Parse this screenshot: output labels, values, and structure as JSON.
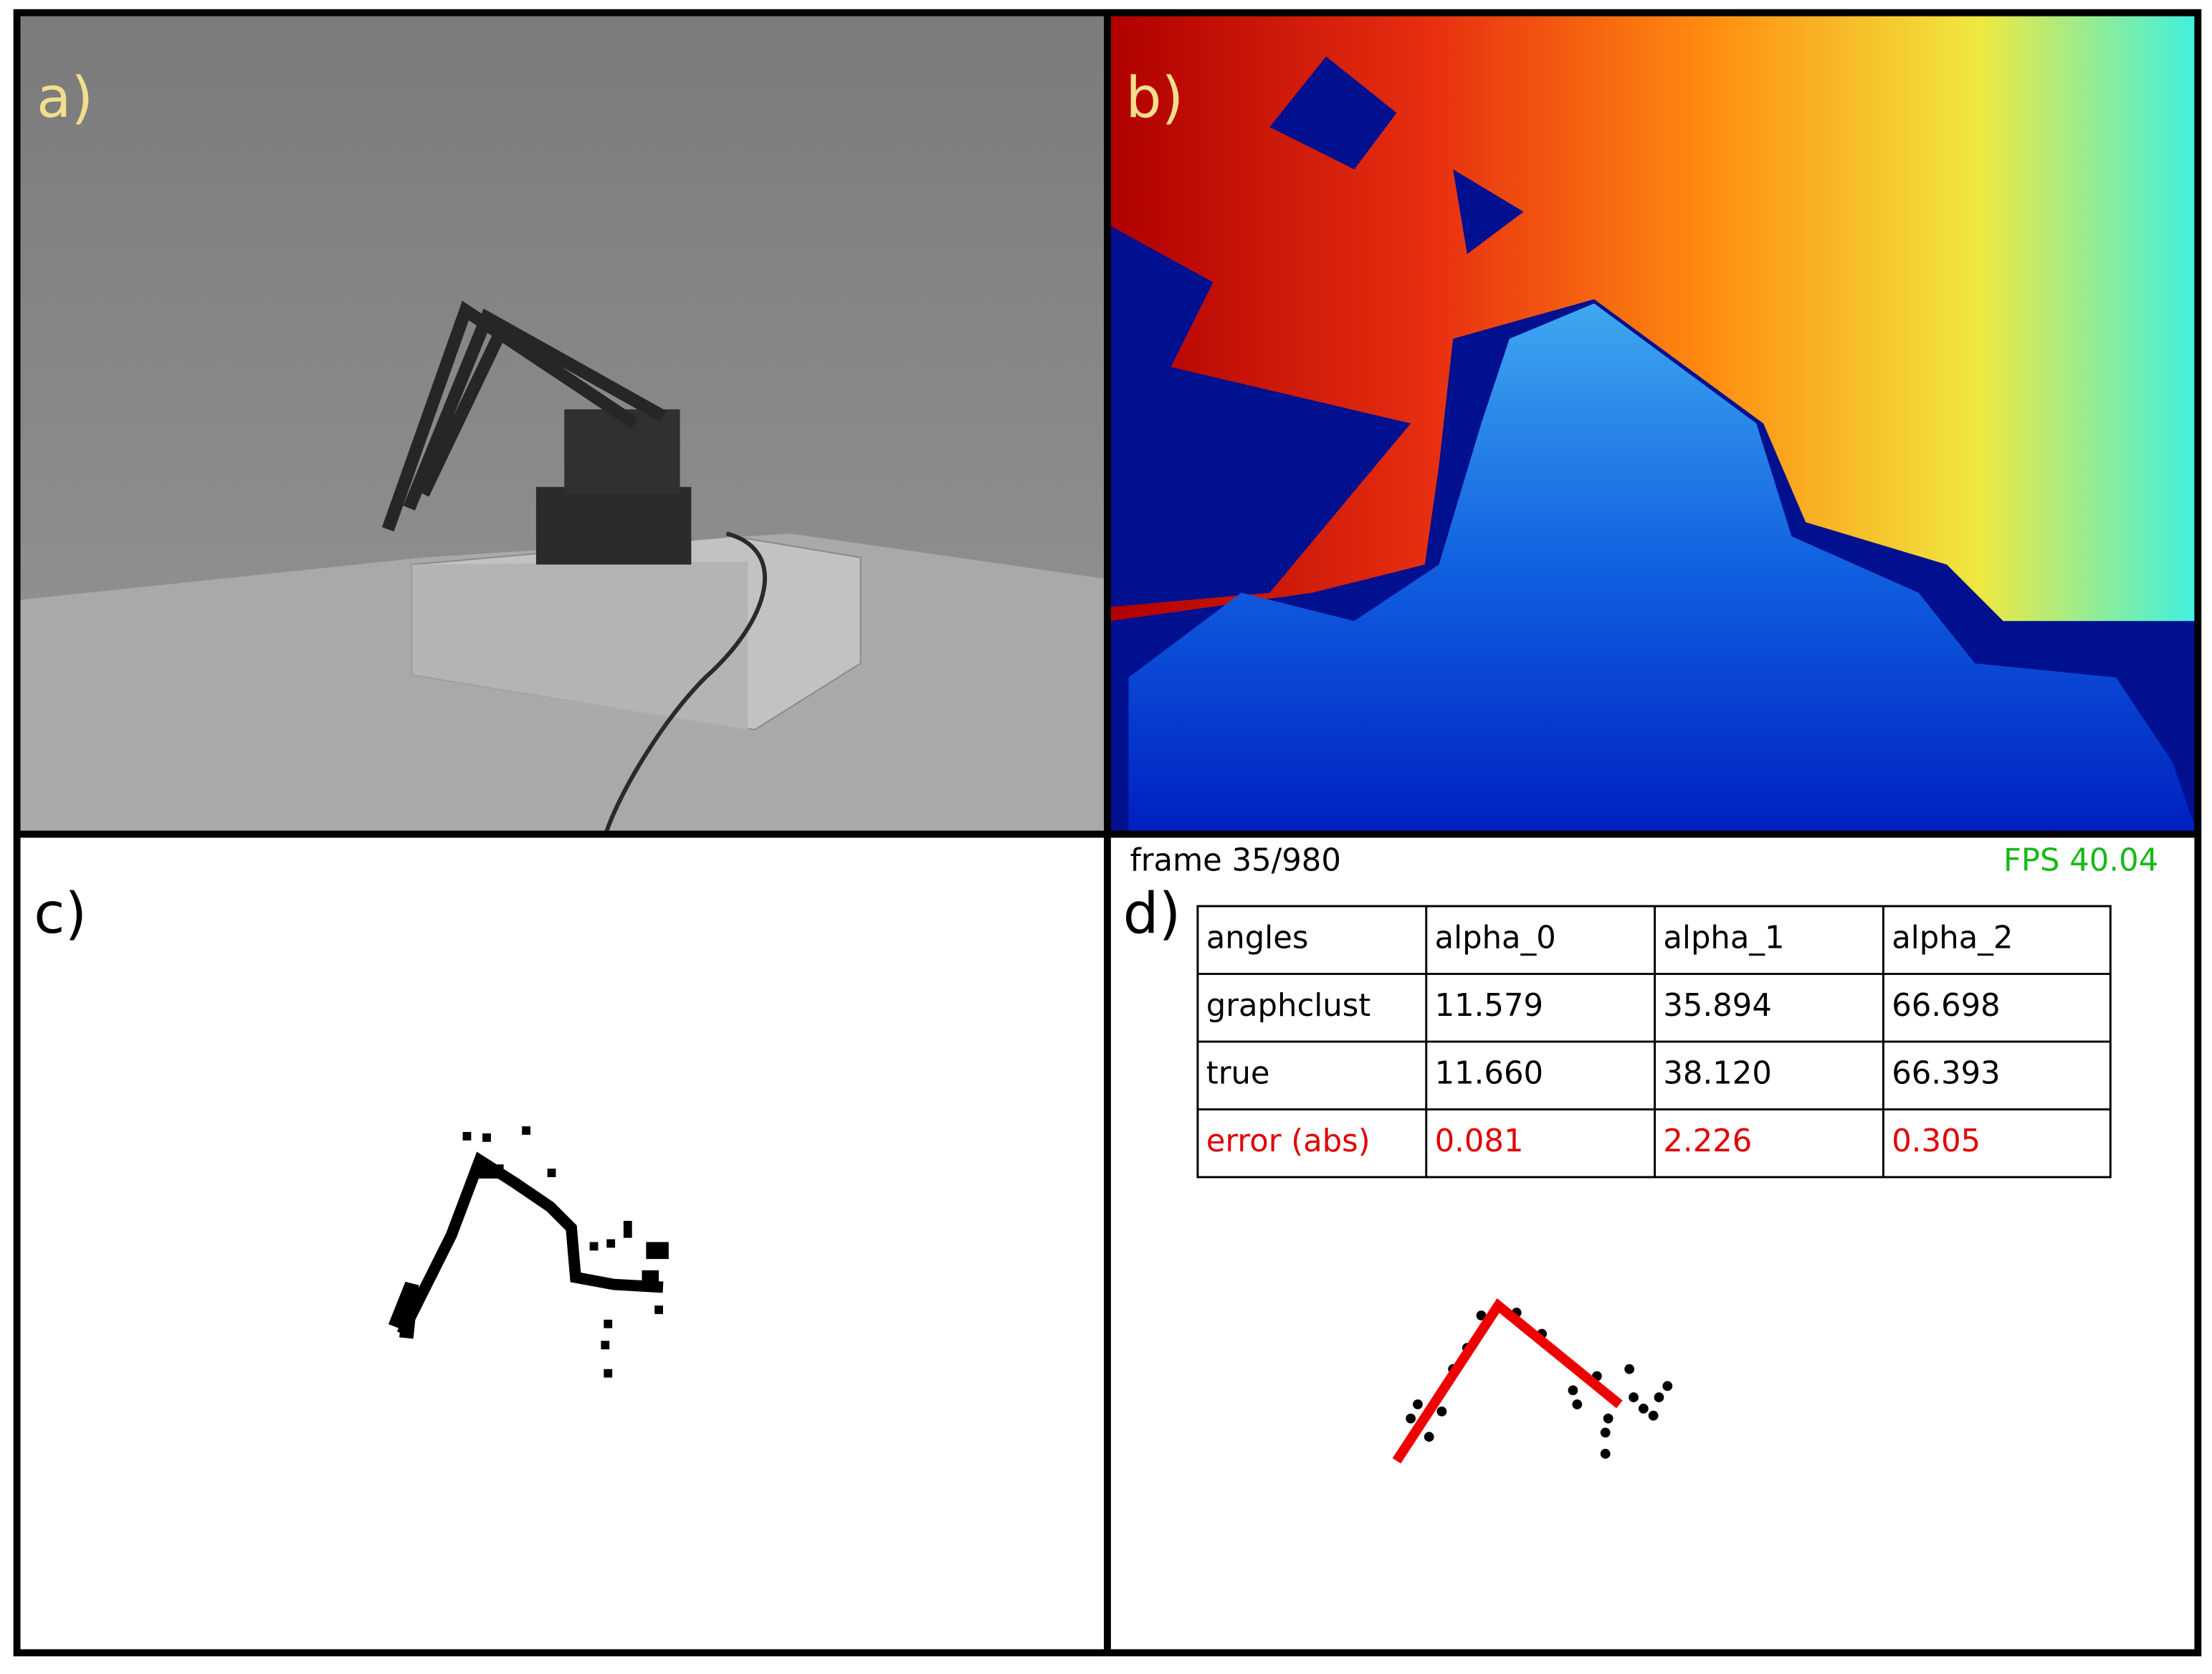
{
  "panels": {
    "a": {
      "label": "a)"
    },
    "b": {
      "label": "b)"
    },
    "c": {
      "label": "c)"
    },
    "d": {
      "label": "d)",
      "frame": "frame 35/980",
      "fps": "FPS 40.04",
      "table": {
        "header": [
          "angles",
          "alpha_0",
          "alpha_1",
          "alpha_2"
        ],
        "rows": [
          [
            "graphclust",
            "11.579",
            "35.894",
            "66.698"
          ],
          [
            "true",
            "11.660",
            "38.120",
            "66.393"
          ],
          [
            "error (abs)",
            "0.081",
            "2.226",
            "0.305"
          ]
        ]
      }
    }
  }
}
